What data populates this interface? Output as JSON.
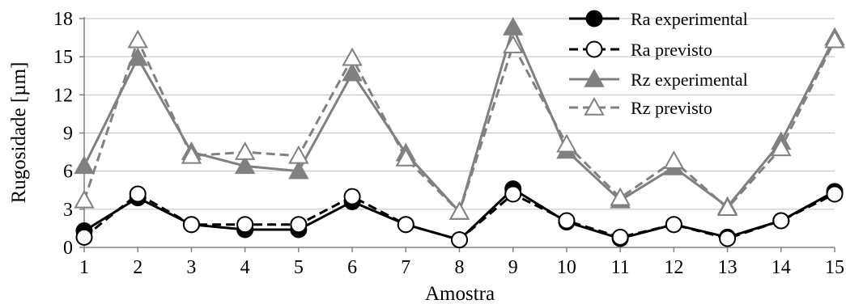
{
  "chart_data": {
    "type": "line",
    "xlabel": "Amostra",
    "ylabel": "Rugosidade [µm]",
    "ylim": [
      0,
      18
    ],
    "yticks": [
      "0",
      "3",
      "6",
      "9",
      "12",
      "15",
      "18"
    ],
    "x": [
      1,
      2,
      3,
      4,
      5,
      6,
      7,
      8,
      9,
      10,
      11,
      12,
      13,
      14,
      15
    ],
    "xticks": [
      "1",
      "2",
      "3",
      "4",
      "5",
      "6",
      "7",
      "8",
      "9",
      "10",
      "11",
      "12",
      "13",
      "14",
      "15"
    ],
    "grid": "horizontal",
    "legend_position": "top-right",
    "series": [
      {
        "name": "Ra experimental",
        "values": [
          1.3,
          3.9,
          1.8,
          1.4,
          1.4,
          3.6,
          1.8,
          0.6,
          4.6,
          2.0,
          0.7,
          1.8,
          0.8,
          2.1,
          4.4
        ],
        "color": "#000000",
        "dash": "solid",
        "marker": "circle-filled"
      },
      {
        "name": "Ra previsto",
        "values": [
          0.8,
          4.2,
          1.8,
          1.8,
          1.8,
          4.0,
          1.8,
          0.6,
          4.2,
          2.1,
          0.8,
          1.8,
          0.7,
          2.1,
          4.2
        ],
        "color": "#000000",
        "dash": "dashed",
        "marker": "circle-open"
      },
      {
        "name": "Rz experimental",
        "values": [
          6.4,
          14.9,
          7.5,
          6.4,
          6.0,
          13.7,
          7.4,
          2.8,
          17.3,
          7.6,
          3.7,
          6.3,
          3.2,
          8.3,
          16.5
        ],
        "color": "#808080",
        "dash": "solid",
        "marker": "triangle-filled"
      },
      {
        "name": "Rz previsto",
        "values": [
          3.7,
          16.3,
          7.2,
          7.5,
          7.2,
          14.9,
          7.0,
          2.8,
          15.9,
          8.1,
          3.9,
          6.8,
          3.1,
          7.8,
          16.3
        ],
        "color": "#808080",
        "dash": "dashed",
        "marker": "triangle-open"
      }
    ]
  }
}
